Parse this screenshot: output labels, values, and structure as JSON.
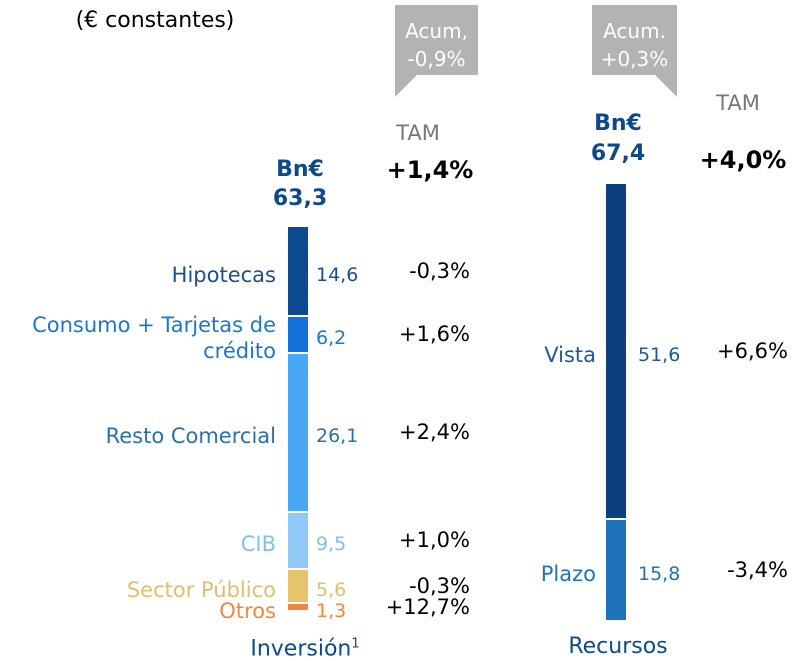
{
  "note": "(€ constantes)",
  "chart_data": [
    {
      "type": "stacked_bar",
      "name": "Inversión",
      "footnote": "1",
      "unit": "Bn€",
      "total": 63.3,
      "total_label": "63,3",
      "badge": [
        "Acum,",
        "-0,9%"
      ],
      "tam_header": "TAM",
      "total_tam": "+1,4%",
      "categories": [
        "Hipotecas",
        "Consumo + Tarjetas de crédito",
        "Resto Comercial",
        "CIB",
        "Sector Público",
        "Otros"
      ],
      "values": [
        14.6,
        6.2,
        26.1,
        9.5,
        5.6,
        1.3
      ],
      "value_labels": [
        "14,6",
        "6,2",
        "26,1",
        "9,5",
        "5,6",
        "1,3"
      ],
      "tam": [
        "-0,3%",
        "+1,6%",
        "+2,4%",
        "+1,0%",
        "-0,3%",
        "+12,7%"
      ],
      "colors": [
        "#0b4a8f",
        "#1572dc",
        "#4aa7f5",
        "#90c9f8",
        "#e6c46b",
        "#f0883c"
      ],
      "label_colors": [
        "#1d4f8c",
        "#1a78cf",
        "#2b70ac",
        "#7ec0f0",
        "#e0bf6a",
        "#ee8a3e"
      ]
    },
    {
      "type": "stacked_bar",
      "name": "Recursos",
      "unit": "Bn€",
      "total": 67.4,
      "total_label": "67,4",
      "badge": [
        "Acum.",
        "+0,3%"
      ],
      "tam_header": "TAM",
      "total_tam": "+4,0%",
      "categories": [
        "Vista",
        "Plazo"
      ],
      "values": [
        51.6,
        15.8
      ],
      "value_labels": [
        "51,6",
        "15,8"
      ],
      "tam": [
        "+6,6%",
        "-3,4%"
      ],
      "colors": [
        "#0c3f7b",
        "#1f73bd"
      ],
      "label_colors": [
        "#1d5a9a",
        "#1f73bd"
      ]
    }
  ]
}
